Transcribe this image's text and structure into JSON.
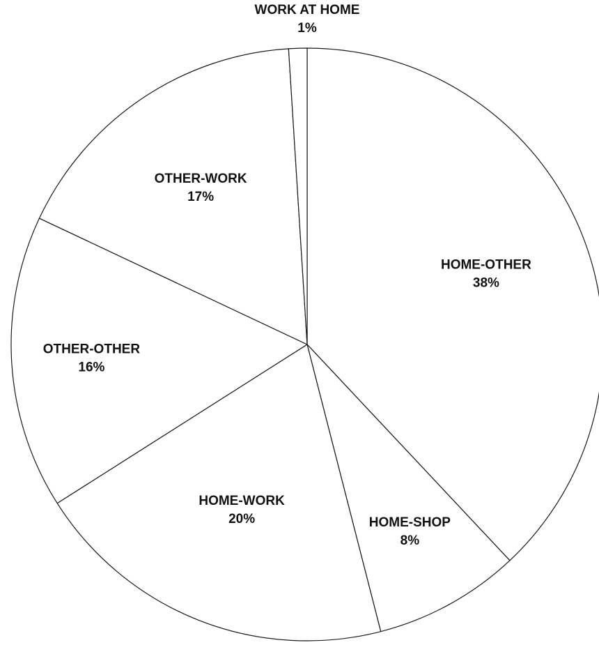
{
  "chart_data": {
    "type": "pie",
    "title": "",
    "start": "top",
    "direction": "clockwise",
    "slices": [
      {
        "label": "HOME-OTHER",
        "value": 38,
        "value_label": "38%"
      },
      {
        "label": "HOME-SHOP",
        "value": 8,
        "value_label": "8%"
      },
      {
        "label": "HOME-WORK",
        "value": 20,
        "value_label": "20%"
      },
      {
        "label": "OTHER-OTHER",
        "value": 16,
        "value_label": "16%"
      },
      {
        "label": "OTHER-WORK",
        "value": 17,
        "value_label": "17%"
      },
      {
        "label": "WORK AT HOME",
        "value": 1,
        "value_label": "1%"
      }
    ],
    "colors": {
      "fill": "#ffffff",
      "stroke": "#1a1a1a",
      "text": "#111111"
    }
  }
}
